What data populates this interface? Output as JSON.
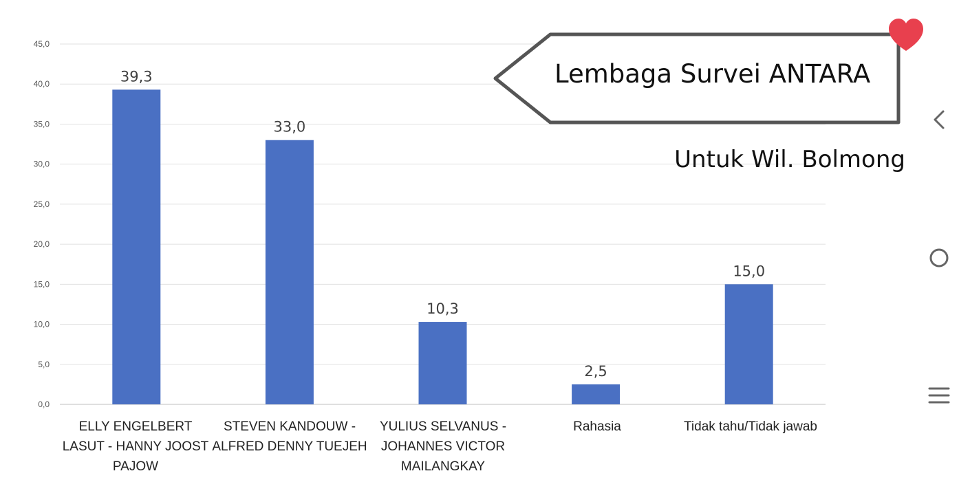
{
  "callout": {
    "title": "Lembaga Survei ANTARA",
    "subtitle": "Untuk Wil. Bolmong"
  },
  "colors": {
    "bar": "#4A70C3",
    "heart": "#E8404E",
    "grid": "#E0E0E0",
    "icon": "#666666"
  },
  "side_icons": [
    "back-chevron-icon",
    "home-circle-icon",
    "menu-lines-icon"
  ],
  "chart_data": {
    "type": "bar",
    "title": "",
    "xlabel": "",
    "ylabel": "",
    "ylim": [
      0,
      45
    ],
    "yticks": [
      "0,0",
      "5,0",
      "10,0",
      "15,0",
      "20,0",
      "25,0",
      "30,0",
      "35,0",
      "40,0",
      "45,0"
    ],
    "categories": [
      "ELLY ENGELBERT LASUT - HANNY JOOST PAJOW",
      "STEVEN KANDOUW - ALFRED DENNY TUEJEH",
      "YULIUS SELVANUS - JOHANNES VICTOR MAILANGKAY",
      "Rahasia",
      "Tidak tahu/Tidak jawab"
    ],
    "values": [
      39.3,
      33.0,
      10.3,
      2.5,
      15.0
    ],
    "value_labels": [
      "39,3",
      "33,0",
      "10,3",
      "2,5",
      "15,0"
    ],
    "grid": true
  }
}
